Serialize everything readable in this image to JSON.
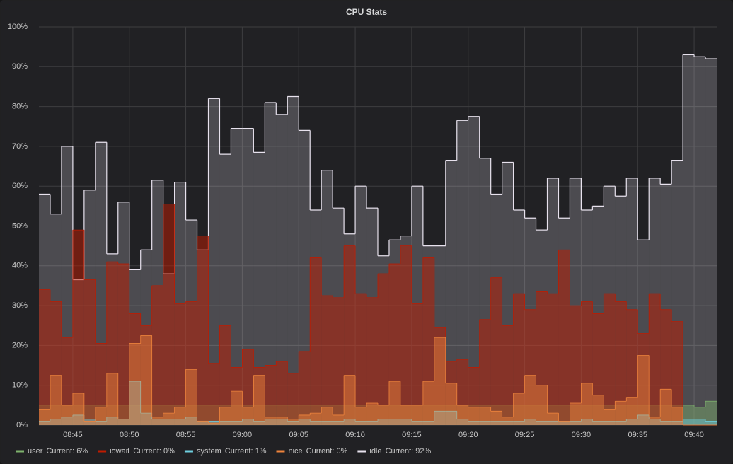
{
  "chart_data": {
    "type": "step-area",
    "title": "CPU Stats",
    "x": [
      "08:42",
      "08:43",
      "08:44",
      "08:45",
      "08:46",
      "08:47",
      "08:48",
      "08:49",
      "08:50",
      "08:51",
      "08:52",
      "08:53",
      "08:54",
      "08:55",
      "08:56",
      "08:57",
      "08:58",
      "08:59",
      "09:00",
      "09:01",
      "09:02",
      "09:03",
      "09:04",
      "09:05",
      "09:06",
      "09:07",
      "09:08",
      "09:09",
      "09:10",
      "09:11",
      "09:12",
      "09:13",
      "09:14",
      "09:15",
      "09:16",
      "09:17",
      "09:18",
      "09:19",
      "09:20",
      "09:21",
      "09:22",
      "09:23",
      "09:24",
      "09:25",
      "09:26",
      "09:27",
      "09:28",
      "09:29",
      "09:30",
      "09:31",
      "09:32",
      "09:33",
      "09:34",
      "09:35",
      "09:36",
      "09:37",
      "09:38",
      "09:39",
      "09:40",
      "09:41"
    ],
    "xlim": [
      "08:42",
      "09:42"
    ],
    "xticks": [
      "08:45",
      "08:50",
      "08:55",
      "09:00",
      "09:05",
      "09:10",
      "09:15",
      "09:20",
      "09:25",
      "09:30",
      "09:35",
      "09:40"
    ],
    "ylim": [
      0,
      100
    ],
    "yticks": [
      {
        "value": 0,
        "label": "0%"
      },
      {
        "value": 10,
        "label": "10%"
      },
      {
        "value": 20,
        "label": "20%"
      },
      {
        "value": 30,
        "label": "30%"
      },
      {
        "value": 40,
        "label": "40%"
      },
      {
        "value": 50,
        "label": "50%"
      },
      {
        "value": 60,
        "label": "60%"
      },
      {
        "value": 70,
        "label": "70%"
      },
      {
        "value": 80,
        "label": "80%"
      },
      {
        "value": 90,
        "label": "90%"
      },
      {
        "value": 100,
        "label": "100%"
      }
    ],
    "grid": true,
    "series": [
      {
        "name": "user",
        "color": "#7eb26d",
        "current": "Current: 6%",
        "values": [
          5,
          5,
          5,
          5,
          5,
          5,
          5,
          5,
          5,
          5,
          5,
          5,
          5,
          5,
          5,
          5,
          5,
          5,
          5,
          5,
          5,
          5,
          5,
          5,
          5,
          5,
          5,
          5,
          5,
          5,
          5,
          5,
          5,
          5,
          5,
          5,
          5,
          5,
          5,
          5,
          5,
          5,
          5,
          5,
          5,
          5,
          5,
          5,
          5,
          5,
          5,
          5,
          5,
          5,
          5,
          5,
          5,
          5,
          4.5,
          6
        ]
      },
      {
        "name": "iowait",
        "color": "#bf1b00",
        "current": "Current: 0%",
        "values": [
          34,
          31,
          22,
          49,
          36.5,
          20.5,
          41,
          40.5,
          28,
          25,
          35,
          55.5,
          30.5,
          31,
          47.5,
          15.5,
          25,
          14.5,
          19,
          14.5,
          15,
          16,
          13,
          18.5,
          42,
          32.5,
          32,
          45,
          33,
          32,
          38,
          40.5,
          45,
          30.5,
          42,
          24.5,
          16,
          16.5,
          14.5,
          26.5,
          37,
          25,
          33,
          29,
          33.5,
          33,
          44,
          30,
          31,
          28,
          33,
          31,
          29,
          23,
          33,
          29,
          26,
          0,
          0,
          0
        ]
      },
      {
        "name": "system",
        "color": "#6ed0e0",
        "current": "Current: 1%",
        "values": [
          1,
          1.5,
          2,
          2.5,
          1.5,
          1,
          2,
          1.5,
          11,
          3,
          1.5,
          1.5,
          1.5,
          2,
          1,
          1,
          1,
          1,
          1.5,
          1,
          1.5,
          1.5,
          1,
          1.5,
          1,
          1,
          1,
          1.5,
          1,
          1,
          1.5,
          1.5,
          1.5,
          1,
          1,
          3.5,
          3.5,
          1.5,
          1,
          1,
          1,
          1,
          1,
          1.5,
          1,
          1,
          1,
          1,
          1.5,
          1,
          1,
          1,
          1.5,
          2.5,
          1.5,
          1,
          1,
          1.5,
          1.5,
          1
        ]
      },
      {
        "name": "nice",
        "color": "#ef843c",
        "current": "Current: 0%",
        "values": [
          4,
          12.5,
          5,
          8,
          1,
          4.5,
          13,
          1.5,
          20.5,
          22.5,
          2,
          3,
          4.5,
          14,
          1,
          0.5,
          4.5,
          8.5,
          4.5,
          12.5,
          2,
          2,
          1.5,
          2.5,
          3,
          4.5,
          2.5,
          12.5,
          4.5,
          5.5,
          5,
          11,
          5,
          5,
          11,
          22,
          10.5,
          5,
          4.5,
          4.5,
          3.5,
          2,
          8,
          12.5,
          10,
          3,
          1,
          5.5,
          10.5,
          7.5,
          4,
          6,
          7,
          17.5,
          2,
          9,
          4.5,
          0,
          0,
          0
        ]
      },
      {
        "name": "idle",
        "color": "#e8e2ee",
        "current": "Current: 92%",
        "values": [
          58,
          53,
          70,
          36.5,
          59,
          71,
          43,
          56,
          39,
          44,
          61.5,
          38,
          61,
          51.5,
          44,
          82,
          68,
          74.5,
          74.5,
          68.5,
          81,
          78,
          82.5,
          74,
          54,
          64,
          54.5,
          48,
          60,
          54.5,
          42.5,
          46.5,
          47.5,
          60,
          45,
          45,
          66.5,
          76.5,
          77.5,
          67,
          58,
          66,
          54,
          52,
          49,
          62,
          52,
          62,
          54,
          55,
          60,
          57.5,
          62,
          46.5,
          62,
          60.5,
          66.5,
          93,
          92.5,
          92
        ]
      }
    ]
  }
}
